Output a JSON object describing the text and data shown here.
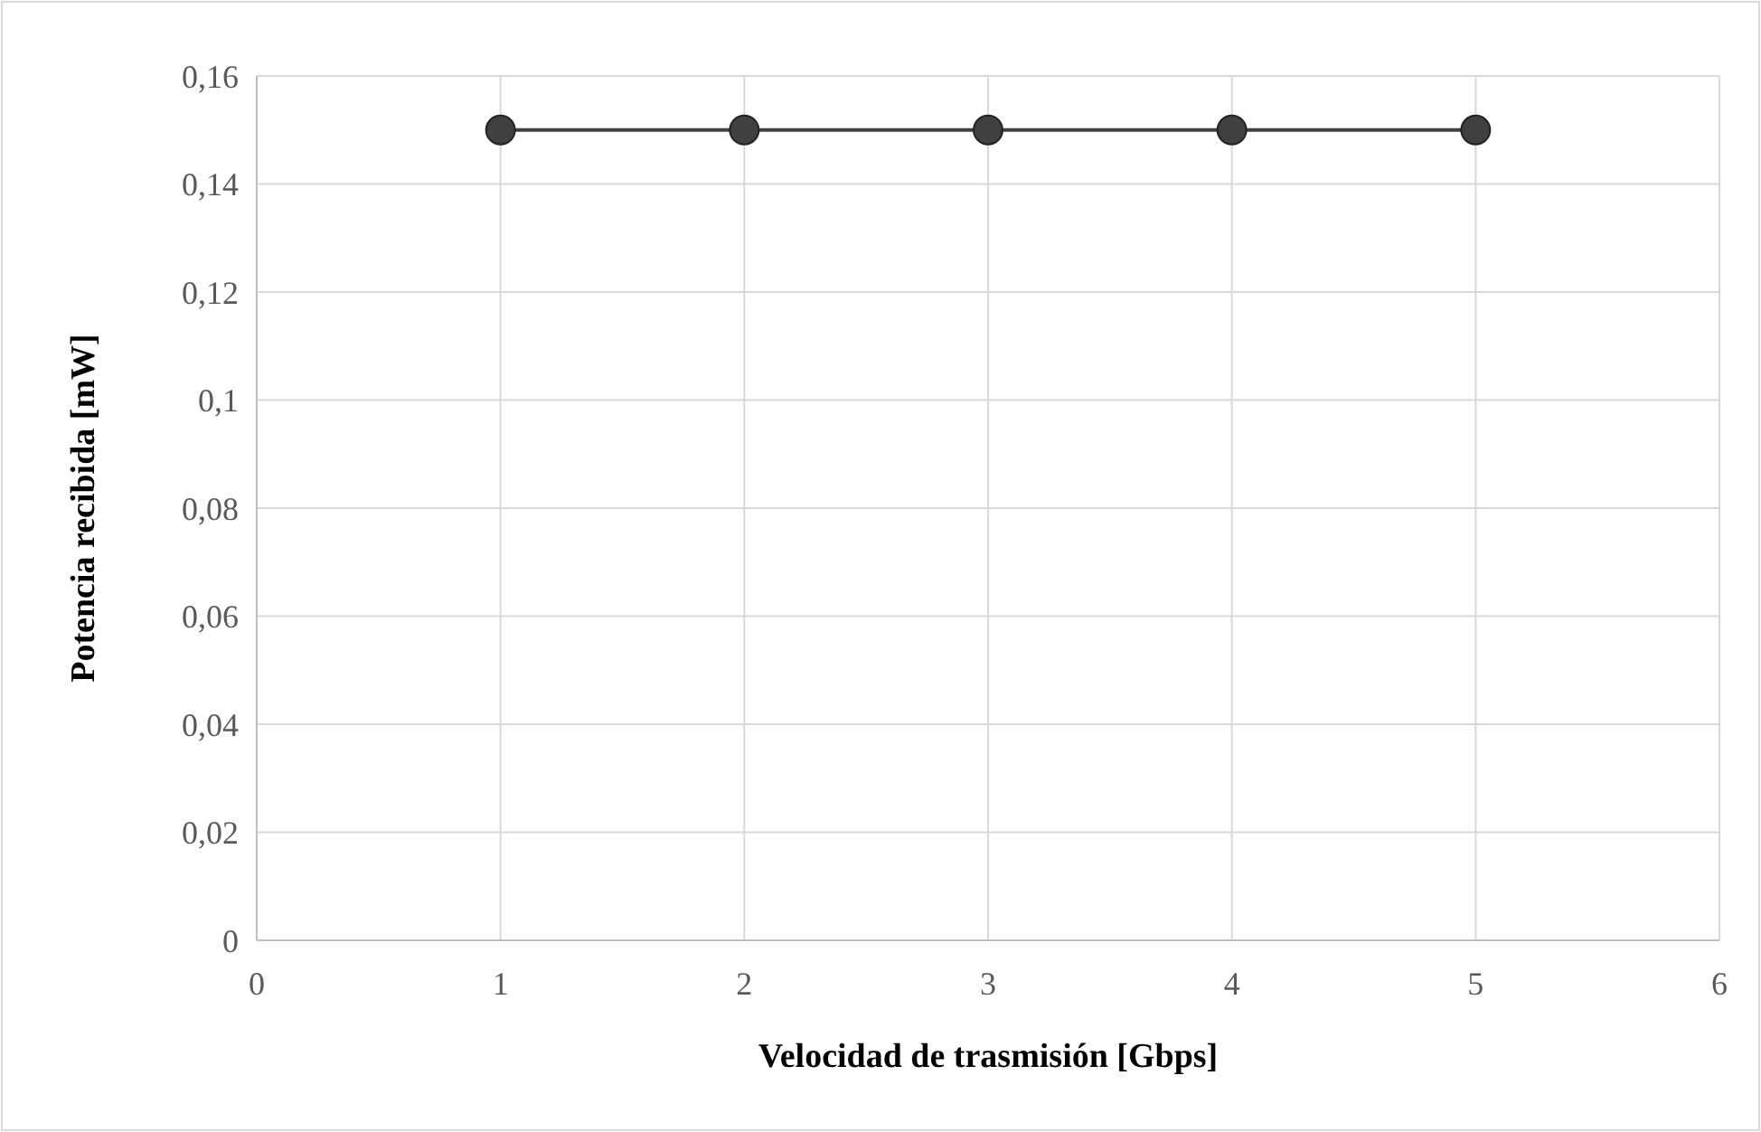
{
  "chart_data": {
    "type": "line",
    "xlabel": "Velocidad de trasmisión [Gbps]",
    "ylabel": "Potencia recibida [mW]",
    "x": [
      1,
      2,
      3,
      4,
      5
    ],
    "series": [
      {
        "color": "#404040",
        "values": [
          0.15,
          0.15,
          0.15,
          0.15,
          0.15
        ]
      }
    ],
    "xlim": [
      0,
      6
    ],
    "xticks": [
      0,
      1,
      2,
      3,
      4,
      5,
      6
    ],
    "ylim": [
      0,
      0.16
    ],
    "yticks": [
      0,
      {
        "value": 0.02,
        "label": "0,02"
      },
      {
        "value": 0.04,
        "label": "0,04"
      },
      {
        "value": 0.06,
        "label": "0,06"
      },
      {
        "value": 0.08,
        "label": "0,08"
      },
      {
        "value": 0.1,
        "label": "0,1"
      },
      {
        "value": 0.12,
        "label": "0,12"
      },
      {
        "value": 0.14,
        "label": "0,14"
      },
      {
        "value": 0.16,
        "label": "0,16"
      }
    ],
    "grid": true,
    "marker": "circle",
    "line_style": "solid"
  }
}
